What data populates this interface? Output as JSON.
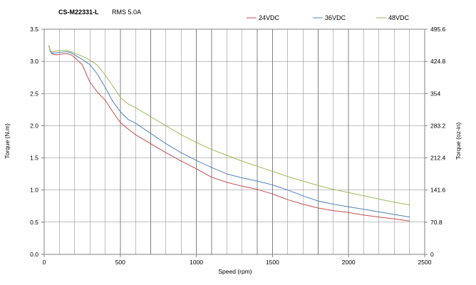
{
  "header": {
    "model": "CS-M22331-L",
    "rms": "RMS 5.0A"
  },
  "colors": {
    "series_24": "#C0504D",
    "series_36": "#4F81BD",
    "series_48": "#9BBB59",
    "grid": "#808080",
    "axis": "#808080"
  },
  "chart_data": {
    "type": "line",
    "xlabel": "Speed (rpm)",
    "ylabel": "Torque (N.m)",
    "y2label": "Torque (oz-in)",
    "xlim": [
      0,
      2500
    ],
    "ylim": [
      0,
      3.5
    ],
    "x_ticks": [
      0,
      500,
      1000,
      1500,
      2000,
      2500
    ],
    "y_ticks": [
      "0.0",
      "0.5",
      "1.0",
      "1.5",
      "2.0",
      "2.5",
      "3.0",
      "3.5"
    ],
    "y2_ticks": [
      "0",
      "70.8",
      "141.6",
      "212.4",
      "283.2",
      "354",
      "424.8",
      "495.6"
    ],
    "x_grid_step": 100,
    "grid": true,
    "legend_position": "top-right",
    "series": [
      {
        "name": "24VDC",
        "x": [
          30,
          40,
          50,
          60,
          80,
          100,
          150,
          180,
          200,
          250,
          300,
          350,
          400,
          450,
          500,
          550,
          600,
          700,
          800,
          900,
          1000,
          1100,
          1200,
          1300,
          1400,
          1500,
          1600,
          1700,
          1800,
          1900,
          2000,
          2100,
          2200,
          2300,
          2400
        ],
        "y": [
          3.25,
          3.16,
          3.12,
          3.11,
          3.1,
          3.11,
          3.12,
          3.1,
          3.06,
          2.95,
          2.68,
          2.52,
          2.4,
          2.22,
          2.05,
          1.95,
          1.86,
          1.72,
          1.58,
          1.45,
          1.33,
          1.2,
          1.12,
          1.06,
          1.01,
          0.94,
          0.85,
          0.78,
          0.72,
          0.68,
          0.65,
          0.61,
          0.58,
          0.55,
          0.52
        ]
      },
      {
        "name": "36VDC",
        "x": [
          30,
          40,
          50,
          60,
          80,
          100,
          150,
          180,
          200,
          250,
          300,
          350,
          400,
          450,
          500,
          550,
          600,
          700,
          800,
          900,
          1000,
          1100,
          1200,
          1300,
          1400,
          1500,
          1600,
          1700,
          1800,
          1900,
          2000,
          2100,
          2200,
          2300,
          2400
        ],
        "y": [
          3.25,
          3.16,
          3.13,
          3.13,
          3.13,
          3.14,
          3.15,
          3.13,
          3.1,
          3.03,
          2.95,
          2.8,
          2.6,
          2.38,
          2.22,
          2.1,
          2.04,
          1.88,
          1.72,
          1.58,
          1.46,
          1.35,
          1.25,
          1.19,
          1.14,
          1.08,
          1.0,
          0.91,
          0.83,
          0.78,
          0.74,
          0.7,
          0.66,
          0.62,
          0.58
        ]
      },
      {
        "name": "48VDC",
        "x": [
          30,
          40,
          50,
          60,
          80,
          100,
          150,
          180,
          200,
          250,
          300,
          350,
          400,
          450,
          500,
          550,
          600,
          700,
          800,
          900,
          1000,
          1100,
          1200,
          1300,
          1400,
          1500,
          1600,
          1700,
          1800,
          1900,
          2000,
          2100,
          2200,
          2300,
          2400
        ],
        "y": [
          3.25,
          3.17,
          3.15,
          3.15,
          3.16,
          3.17,
          3.17,
          3.15,
          3.13,
          3.08,
          3.02,
          2.94,
          2.79,
          2.62,
          2.44,
          2.34,
          2.28,
          2.14,
          2.0,
          1.86,
          1.74,
          1.63,
          1.54,
          1.45,
          1.37,
          1.29,
          1.21,
          1.14,
          1.07,
          1.01,
          0.96,
          0.91,
          0.86,
          0.81,
          0.77
        ]
      }
    ]
  }
}
